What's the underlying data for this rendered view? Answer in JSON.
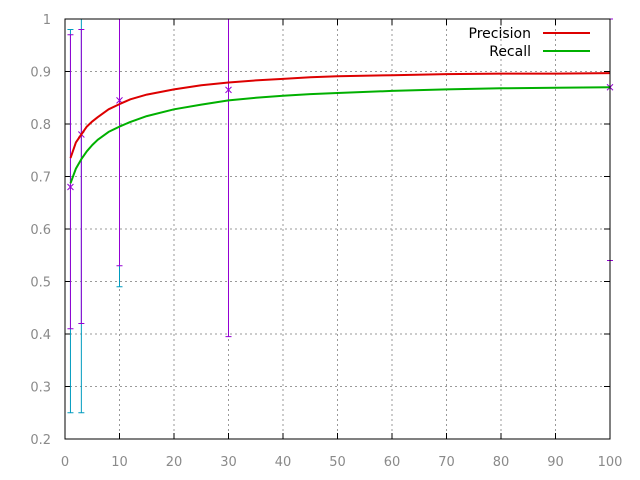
{
  "chart_data": {
    "type": "line",
    "xlim": [
      0,
      100
    ],
    "ylim": [
      0.2,
      1.0
    ],
    "x_ticks": [
      0,
      10,
      20,
      30,
      40,
      50,
      60,
      70,
      80,
      90,
      100
    ],
    "y_ticks": [
      0.2,
      0.3,
      0.4,
      0.5,
      0.6,
      0.7,
      0.8,
      0.9,
      1.0
    ],
    "x_tick_labels": [
      "0",
      "10",
      "20",
      "30",
      "40",
      "50",
      "60",
      "70",
      "80",
      "90",
      "100"
    ],
    "y_tick_labels": [
      "0.2",
      "0.3",
      "0.4",
      "0.5",
      "0.6",
      "0.7",
      "0.8",
      "0.9",
      "1"
    ],
    "grid": true,
    "legend_position": "top-right",
    "series": [
      {
        "name": "Precision",
        "color": "#dd0000",
        "x": [
          1,
          2,
          3,
          4,
          5,
          6,
          8,
          10,
          12,
          15,
          20,
          25,
          30,
          35,
          40,
          45,
          50,
          60,
          70,
          80,
          90,
          100
        ],
        "values": [
          0.735,
          0.765,
          0.78,
          0.795,
          0.805,
          0.813,
          0.828,
          0.838,
          0.847,
          0.856,
          0.866,
          0.874,
          0.879,
          0.883,
          0.886,
          0.889,
          0.891,
          0.893,
          0.895,
          0.896,
          0.896,
          0.897
        ]
      },
      {
        "name": "Recall",
        "color": "#00b000",
        "x": [
          1,
          2,
          3,
          4,
          5,
          6,
          8,
          10,
          12,
          15,
          20,
          25,
          30,
          35,
          40,
          45,
          50,
          60,
          70,
          80,
          90,
          100
        ],
        "values": [
          0.687,
          0.715,
          0.733,
          0.748,
          0.76,
          0.77,
          0.785,
          0.795,
          0.804,
          0.815,
          0.828,
          0.837,
          0.845,
          0.85,
          0.854,
          0.857,
          0.859,
          0.863,
          0.866,
          0.868,
          0.869,
          0.87
        ]
      }
    ],
    "error_bars": [
      {
        "x": 1,
        "low": 0.25,
        "high": 0.98,
        "color": "#009bbf"
      },
      {
        "x": 3,
        "low": 0.25,
        "high": 1.0,
        "color": "#009bbf"
      },
      {
        "x": 10,
        "low": 0.49,
        "high": 1.0,
        "color": "#009bbf"
      },
      {
        "x": 1,
        "low": 0.41,
        "high": 0.97,
        "point": 0.68,
        "color": "#9400d3"
      },
      {
        "x": 3,
        "low": 0.42,
        "high": 0.98,
        "point": 0.78,
        "color": "#9400d3"
      },
      {
        "x": 10,
        "low": 0.53,
        "high": 1.0,
        "point": 0.845,
        "color": "#9400d3"
      },
      {
        "x": 30,
        "low": 0.395,
        "high": 1.0,
        "point": 0.865,
        "color": "#9400d3"
      },
      {
        "x": 100,
        "low": 0.54,
        "high": 1.0,
        "point": 0.87,
        "color": "#9400d3"
      }
    ]
  }
}
